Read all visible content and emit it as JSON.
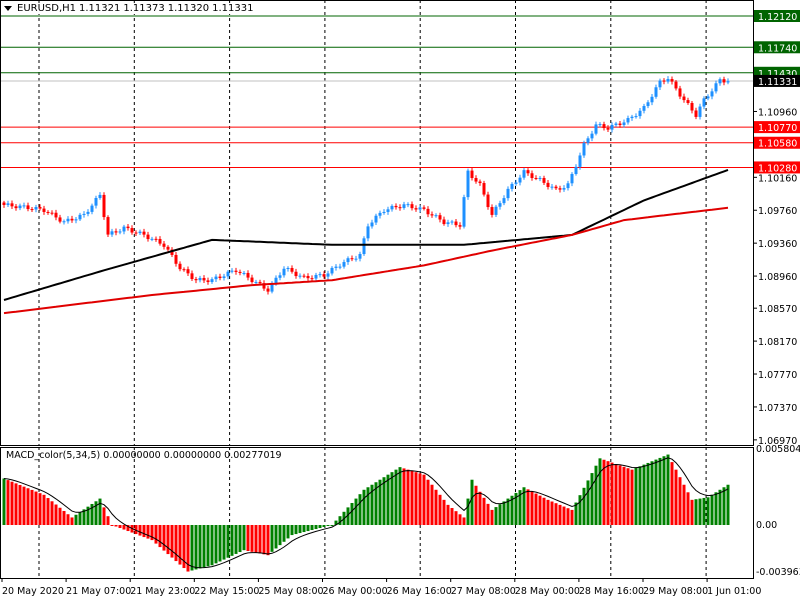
{
  "header": {
    "symbol": "EURUSD,H1",
    "open": "1.11321",
    "high": "1.11373",
    "low": "1.11320",
    "close": "1.11331"
  },
  "macd_header": {
    "label": "MACD_color(5,34,5)",
    "values": "0.00000000 0.00000000 0.00277019"
  },
  "colors": {
    "bull": "#1E90FF",
    "bear": "#FF0000",
    "ma_fast": "#000000",
    "ma_slow": "#E00000",
    "macd_up": "#008000",
    "macd_down": "#FF0000",
    "level_green": "#006400",
    "level_red": "#FF0000"
  },
  "chart_data": [
    {
      "type": "candlestick",
      "title": "EURUSD,H1",
      "ylim": [
        1.0697,
        1.1212
      ],
      "price_ticks": [
        "1.10960",
        "1.10160",
        "1.09760",
        "1.09360",
        "1.08960",
        "1.08570",
        "1.08170",
        "1.07770",
        "1.07370",
        "1.06970"
      ],
      "current_price": "1.11331",
      "levels": [
        {
          "price": "1.12120",
          "kind": "resistance"
        },
        {
          "price": "1.11740",
          "kind": "resistance"
        },
        {
          "price": "1.11430",
          "kind": "resistance"
        },
        {
          "price": "1.10770",
          "kind": "support"
        },
        {
          "price": "1.10580",
          "kind": "support"
        },
        {
          "price": "1.10280",
          "kind": "support"
        }
      ],
      "time_labels": [
        "20 May 2020",
        "21 May 07:00",
        "21 May 23:00",
        "22 May 15:00",
        "25 May 08:00",
        "26 May 00:00",
        "26 May 16:00",
        "27 May 08:00",
        "28 May 00:00",
        "28 May 16:00",
        "29 May 08:00",
        "1 Jun 01:00"
      ],
      "close_samples": [
        [
          0,
          1.09824
        ],
        [
          5,
          1.09799
        ],
        [
          10,
          1.09763
        ],
        [
          15,
          1.09617
        ],
        [
          20,
          1.09702
        ],
        [
          24,
          1.09945
        ],
        [
          26,
          1.09459
        ],
        [
          30,
          1.09544
        ],
        [
          35,
          1.09459
        ],
        [
          40,
          1.09338
        ],
        [
          44,
          1.09058
        ],
        [
          48,
          1.08912
        ],
        [
          52,
          1.08912
        ],
        [
          58,
          1.09034
        ],
        [
          62,
          1.08912
        ],
        [
          66,
          1.08791
        ],
        [
          70,
          1.09058
        ],
        [
          75,
          1.08937
        ],
        [
          80,
          1.08973
        ],
        [
          85,
          1.09131
        ],
        [
          89,
          1.09216
        ],
        [
          91,
          1.09581
        ],
        [
          95,
          1.09763
        ],
        [
          100,
          1.09824
        ],
        [
          105,
          1.09763
        ],
        [
          110,
          1.09617
        ],
        [
          114,
          1.09581
        ],
        [
          116,
          1.10225
        ],
        [
          119,
          1.10067
        ],
        [
          122,
          1.09702
        ],
        [
          126,
          1.10006
        ],
        [
          130,
          1.10225
        ],
        [
          134,
          1.10127
        ],
        [
          138,
          1.10006
        ],
        [
          141,
          1.10067
        ],
        [
          145,
          1.10553
        ],
        [
          148,
          1.10796
        ],
        [
          151,
          1.10759
        ],
        [
          156,
          1.10856
        ],
        [
          160,
          1.11002
        ],
        [
          164,
          1.11318
        ],
        [
          166,
          1.11367
        ],
        [
          170,
          1.11099
        ],
        [
          173,
          1.10917
        ],
        [
          175,
          1.11099
        ],
        [
          179,
          1.11342
        ],
        [
          181,
          1.11331
        ]
      ],
      "ma_fast": [
        [
          0,
          1.0867
        ],
        [
          25,
          1.0903
        ],
        [
          52,
          1.094
        ],
        [
          82,
          1.0934
        ],
        [
          115,
          1.0934
        ],
        [
          142,
          1.0946
        ],
        [
          160,
          1.0988
        ],
        [
          181,
          1.1025
        ]
      ],
      "ma_slow": [
        [
          0,
          1.0851
        ],
        [
          37,
          1.0873
        ],
        [
          62,
          1.0885
        ],
        [
          82,
          1.0891
        ],
        [
          105,
          1.0909
        ],
        [
          122,
          1.0927
        ],
        [
          142,
          1.0946
        ],
        [
          155,
          1.0964
        ],
        [
          181,
          1.0979
        ]
      ]
    },
    {
      "type": "bar",
      "title": "MACD_color(5,34,5)",
      "ylim": [
        -0.003963,
        0.0058042
      ],
      "ticks": [
        "0.0058042",
        "0.00",
        "-0.003963"
      ],
      "histogram_samples": [
        [
          0,
          0.0037
        ],
        [
          10,
          0.0024
        ],
        [
          17,
          0.0006
        ],
        [
          24,
          0.0021
        ],
        [
          27,
          0.0
        ],
        [
          37,
          -0.0012
        ],
        [
          46,
          -0.0037
        ],
        [
          52,
          -0.0032
        ],
        [
          60,
          -0.002
        ],
        [
          66,
          -0.0024
        ],
        [
          72,
          -0.0008
        ],
        [
          82,
          0.0
        ],
        [
          90,
          0.0028
        ],
        [
          99,
          0.0046
        ],
        [
          105,
          0.004
        ],
        [
          111,
          0.0016
        ],
        [
          115,
          0.0006
        ],
        [
          117,
          0.0036
        ],
        [
          122,
          0.0012
        ],
        [
          130,
          0.003
        ],
        [
          136,
          0.002
        ],
        [
          142,
          0.0012
        ],
        [
          149,
          0.0053
        ],
        [
          157,
          0.0044
        ],
        [
          166,
          0.0056
        ],
        [
          172,
          0.002
        ],
        [
          176,
          0.0022
        ],
        [
          181,
          0.0032
        ]
      ]
    }
  ]
}
